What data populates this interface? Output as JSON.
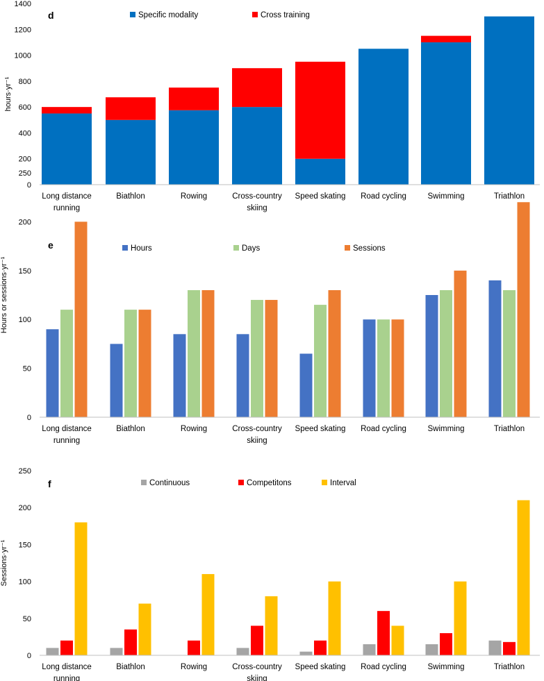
{
  "chart_data": [
    {
      "type": "bar",
      "stacked": true,
      "panel": "d",
      "title": "",
      "xlabel": "",
      "ylabel": "hours·yr⁻¹",
      "ylim": [
        0,
        1400
      ],
      "yticks": [
        0,
        200,
        400,
        600,
        800,
        1000,
        1200,
        1400
      ],
      "legend_position": "top",
      "categories": [
        [
          "Long distance",
          "running"
        ],
        [
          "Biathlon"
        ],
        [
          "Rowing"
        ],
        [
          "Cross-country",
          "skiing"
        ],
        [
          "Speed skating"
        ],
        [
          "Road cycling"
        ],
        [
          "Swimming"
        ],
        [
          "Triathlon"
        ]
      ],
      "series": [
        {
          "name": "Specific modality",
          "color": "#0070C0",
          "values": [
            550,
            500,
            575,
            600,
            200,
            1050,
            1100,
            1300
          ]
        },
        {
          "name": "Cross training",
          "color": "#FF0000",
          "values": [
            50,
            175,
            175,
            300,
            750,
            0,
            50,
            0
          ]
        }
      ]
    },
    {
      "type": "bar",
      "stacked": false,
      "panel": "e",
      "title": "",
      "xlabel": "",
      "ylabel": "Hours or sessions·yr⁻¹",
      "ylim": [
        0,
        250
      ],
      "yticks": [
        0,
        50,
        100,
        150,
        200,
        250
      ],
      "legend_position": "top",
      "categories": [
        [
          "Long distance",
          "running"
        ],
        [
          "Biathlon"
        ],
        [
          "Rowing"
        ],
        [
          "Cross-country",
          "skiing"
        ],
        [
          "Speed skating"
        ],
        [
          "Road cycling"
        ],
        [
          "Swimming"
        ],
        [
          "Triathlon"
        ]
      ],
      "series": [
        {
          "name": "Hours",
          "color": "#4472C4",
          "values": [
            90,
            75,
            85,
            85,
            65,
            100,
            125,
            140
          ]
        },
        {
          "name": "Days",
          "color": "#A9D18E",
          "values": [
            110,
            110,
            130,
            120,
            115,
            100,
            130,
            130
          ]
        },
        {
          "name": "Sessions",
          "color": "#ED7D31",
          "values": [
            200,
            110,
            130,
            120,
            130,
            100,
            150,
            220
          ]
        }
      ]
    },
    {
      "type": "bar",
      "stacked": false,
      "panel": "f",
      "title": "",
      "xlabel": "",
      "ylabel": "Sessions·yr⁻¹",
      "ylim": [
        0,
        250
      ],
      "yticks": [
        0,
        50,
        100,
        150,
        200,
        250
      ],
      "legend_position": "top",
      "categories": [
        [
          "Long distance",
          "running"
        ],
        [
          "Biathlon"
        ],
        [
          "Rowing"
        ],
        [
          "Cross-country",
          "skiing"
        ],
        [
          "Speed skating"
        ],
        [
          "Road cycling"
        ],
        [
          "Swimming"
        ],
        [
          "Triathlon"
        ]
      ],
      "series": [
        {
          "name": "Continuous",
          "color": "#A5A5A5",
          "values": [
            10,
            10,
            0,
            10,
            5,
            15,
            15,
            20
          ]
        },
        {
          "name": "Competitons",
          "color": "#FF0000",
          "values": [
            20,
            35,
            20,
            40,
            20,
            60,
            30,
            18
          ]
        },
        {
          "name": "Interval",
          "color": "#FFC000",
          "values": [
            180,
            70,
            110,
            80,
            100,
            40,
            100,
            210
          ]
        }
      ]
    }
  ]
}
